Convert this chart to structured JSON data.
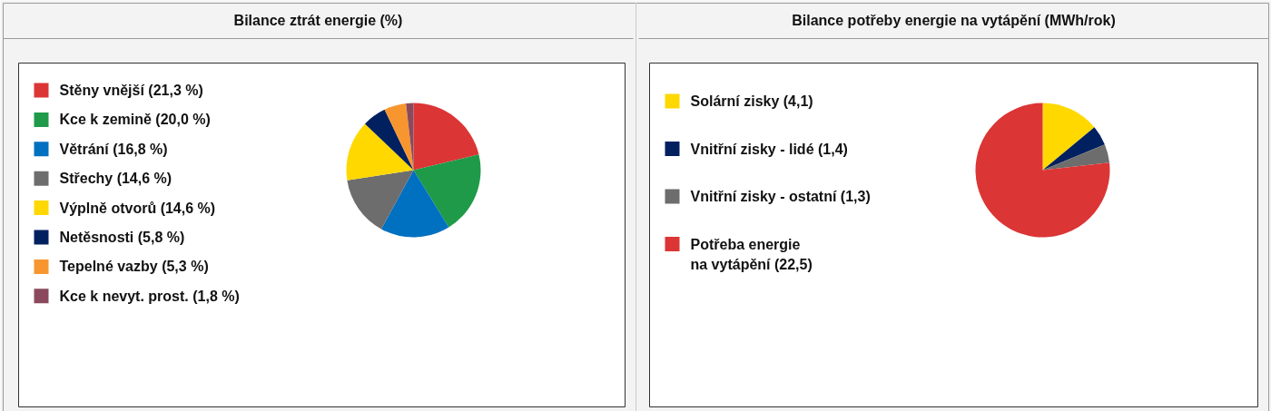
{
  "chart_data": [
    {
      "type": "pie",
      "title": "Bilance ztrát energie (%)",
      "categories": [
        "Stěny vnější (21,3 %)",
        "Kce k zemině (20,0 %)",
        "Větrání (16,8 %)",
        "Střechy (14,6 %)",
        "Výplně otvorů (14,6 %)",
        "Netěsnosti (5,8 %)",
        "Tepelné vazby (5,3 %)",
        "Kce k nevyt. prost. (1,8 %)"
      ],
      "values": [
        21.3,
        20.0,
        16.8,
        14.6,
        14.6,
        5.8,
        5.3,
        1.8
      ],
      "colors": [
        "#dc3535",
        "#1e9a48",
        "#0070c0",
        "#6d6d6d",
        "#ffd800",
        "#002060",
        "#f7962f",
        "#8b4a5c"
      ],
      "legend": "left"
    },
    {
      "type": "pie",
      "title": "Bilance potřeby energie na vytápění (MWh/rok)",
      "categories": [
        "Solární zisky (4,1)",
        "Vnitřní zisky - lidé (1,4)",
        "Vnitřní zisky - ostatní (1,3)",
        "Potřeba energie\nna vytápění (22,5)"
      ],
      "values": [
        4.1,
        1.4,
        1.3,
        22.5
      ],
      "colors": [
        "#ffd800",
        "#002060",
        "#6d6d6d",
        "#dc3535"
      ],
      "legend": "left"
    }
  ]
}
